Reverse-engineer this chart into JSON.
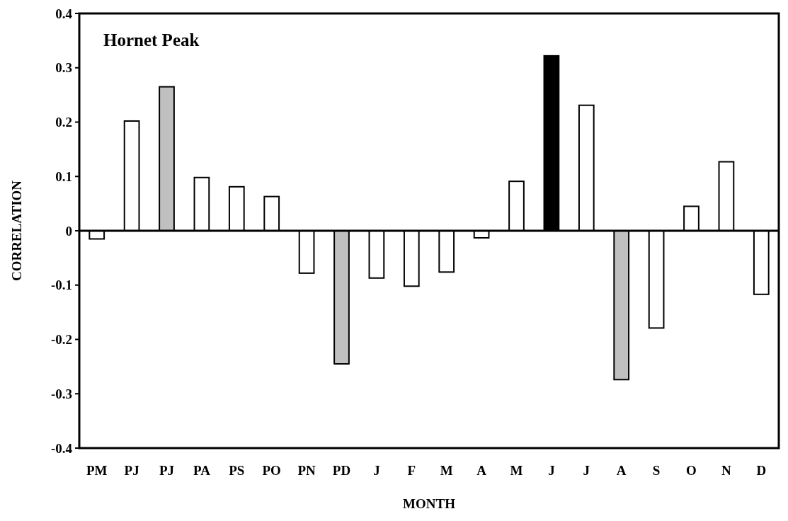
{
  "chart_data": {
    "type": "bar",
    "title": "Hornet Peak",
    "xlabel": "MONTH",
    "ylabel": "CORRELATION",
    "categories": [
      "PM",
      "PJ",
      "PJ",
      "PA",
      "PS",
      "PO",
      "PN",
      "PD",
      "J",
      "F",
      "M",
      "A",
      "M",
      "J",
      "J",
      "A",
      "S",
      "O",
      "N",
      "D"
    ],
    "values": [
      -0.015,
      0.202,
      0.265,
      0.098,
      0.081,
      0.063,
      -0.078,
      -0.245,
      -0.087,
      -0.102,
      -0.076,
      -0.013,
      0.091,
      0.322,
      0.231,
      -0.274,
      -0.179,
      0.045,
      0.127,
      -0.117
    ],
    "colors": [
      "#ffffff",
      "#ffffff",
      "#c0c0c0",
      "#ffffff",
      "#ffffff",
      "#ffffff",
      "#ffffff",
      "#c0c0c0",
      "#ffffff",
      "#ffffff",
      "#ffffff",
      "#ffffff",
      "#ffffff",
      "#000000",
      "#ffffff",
      "#c0c0c0",
      "#ffffff",
      "#ffffff",
      "#ffffff",
      "#ffffff"
    ],
    "ylim": [
      -0.4,
      0.4
    ],
    "yticks": [
      {
        "value": -0.4,
        "label": "-0.4"
      },
      {
        "value": -0.3,
        "label": "-0.3"
      },
      {
        "value": -0.2,
        "label": "-0.2"
      },
      {
        "value": -0.1,
        "label": "-0.1"
      },
      0,
      0.1,
      0.2,
      0.3,
      0.4
    ]
  }
}
